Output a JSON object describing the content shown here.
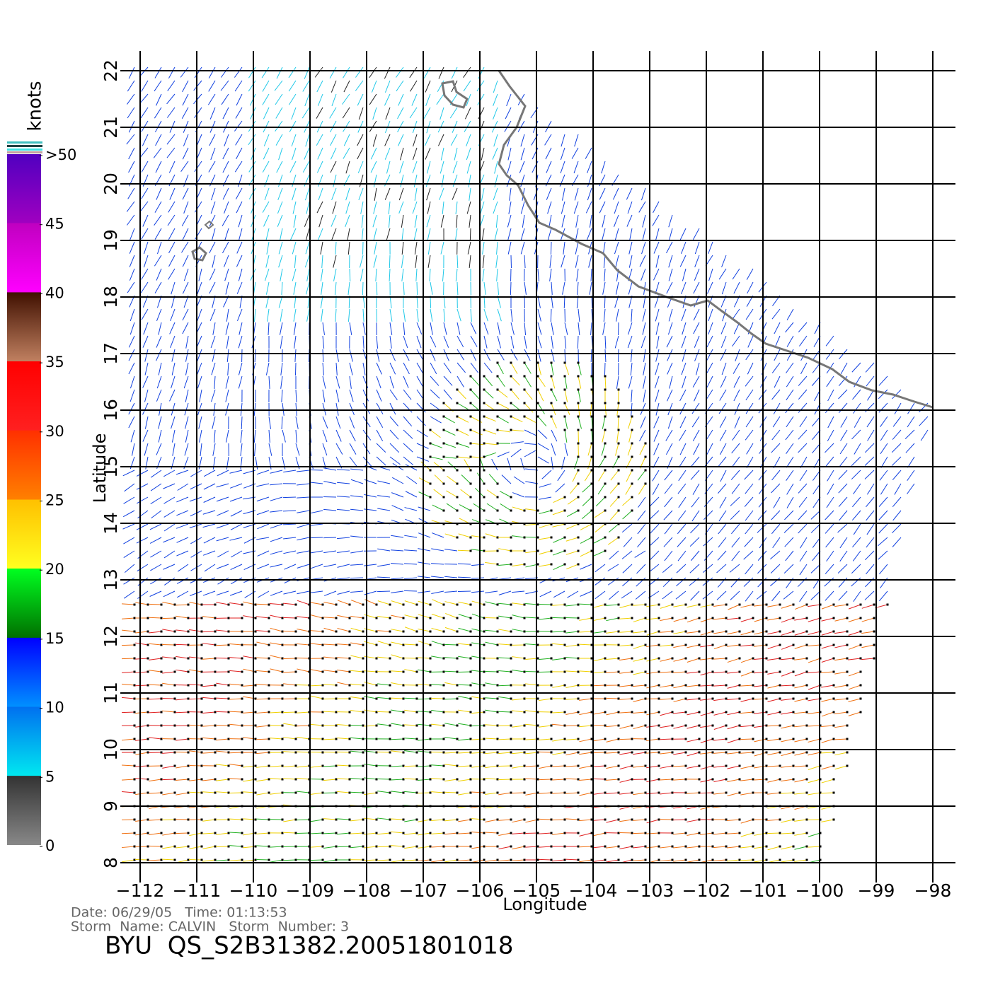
{
  "map": {
    "x_axis_label": "Longitude",
    "y_axis_label": "Latitude",
    "xlim": [
      -112,
      -98
    ],
    "ylim": [
      8,
      22
    ],
    "xticks": [
      {
        "value": -112,
        "label": "−112"
      },
      {
        "value": -111,
        "label": "−111"
      },
      {
        "value": -110,
        "label": "−110"
      },
      {
        "value": -109,
        "label": "−109"
      },
      {
        "value": -108,
        "label": "−108"
      },
      {
        "value": -107,
        "label": "−107"
      },
      {
        "value": -106,
        "label": "−106"
      },
      {
        "value": -105,
        "label": "−105"
      },
      {
        "value": -104,
        "label": "−104"
      },
      {
        "value": -103,
        "label": "−103"
      },
      {
        "value": -102,
        "label": "−102"
      },
      {
        "value": -101,
        "label": "−101"
      },
      {
        "value": -100,
        "label": "−100"
      },
      {
        "value": -99,
        "label": "−99"
      },
      {
        "value": -98,
        "label": "−98"
      }
    ],
    "yticks": [
      8,
      9,
      10,
      11,
      12,
      13,
      14,
      15,
      16,
      17,
      18,
      19,
      20,
      21,
      22
    ]
  },
  "colorbar": {
    "title": "knots",
    "lim": [
      0,
      50
    ],
    "ticks": [
      0,
      5,
      10,
      15,
      20,
      25,
      30,
      35,
      40,
      45,
      {
        "value": 50,
        "label": ">50"
      }
    ]
  },
  "footer": {
    "date_line": "Date: 06/29/05   Time: 01:13:53",
    "storm_line": "Storm  Name: CALVIN   Storm  Number: 3",
    "product": "BYU  QS_S2B31382.20051801018"
  }
}
